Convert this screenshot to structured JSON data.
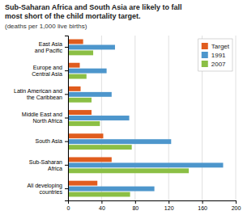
{
  "chart_data": {
    "type": "bar",
    "orientation": "horizontal",
    "title": "Sub-Saharan Africa and South Asia are likely to fall\nmost short of the child mortality target.",
    "subtitle": "(deaths per 1,000 live births)",
    "categories": [
      "East Asia\nand Pacific",
      "Europe and\nCentral Asia",
      "Latin American and\nthe Caribbean",
      "Middle East and\nNorth Africa",
      "South Asia",
      "Sub-Saharan\nAfrica",
      "All developing\ncountries"
    ],
    "series": [
      {
        "name": "Target",
        "color": "#e05c1e",
        "values": [
          18,
          14,
          15,
          28,
          42,
          52,
          35
        ]
      },
      {
        "name": "1991",
        "color": "#4d96cc",
        "values": [
          56,
          46,
          52,
          73,
          123,
          185,
          103
        ]
      },
      {
        "name": "2007",
        "color": "#8bbf45",
        "values": [
          30,
          22,
          28,
          38,
          76,
          144,
          74
        ]
      }
    ],
    "xlim": [
      0,
      200
    ],
    "xticks": [
      0,
      40,
      80,
      120,
      160,
      200
    ],
    "grid": true,
    "legend": "upper right"
  }
}
